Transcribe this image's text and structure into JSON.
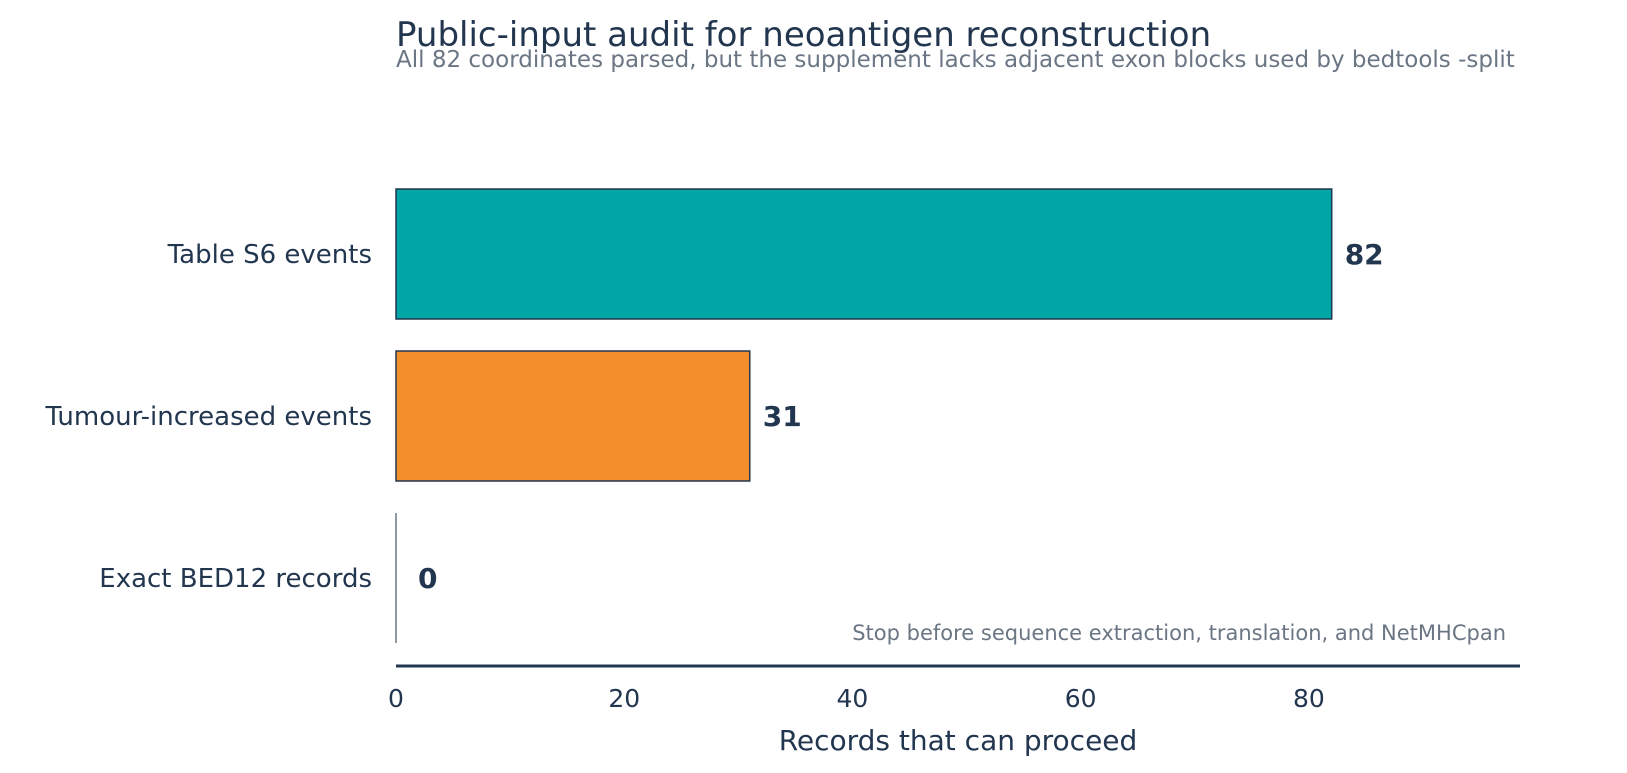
{
  "chart_data": {
    "type": "bar",
    "orientation": "horizontal",
    "title": "Public-input audit for neoantigen reconstruction",
    "subtitle": "All 82 coordinates parsed, but the supplement lacks adjacent exon blocks used by bedtools -split",
    "categories": [
      "Table S6 events",
      "Tumour-increased events",
      "Exact BED12 records"
    ],
    "values": [
      82,
      31,
      0
    ],
    "value_labels": [
      "82",
      "31",
      "0"
    ],
    "bar_colors": [
      "#00a6a6",
      "#f28e2b",
      "#22364f"
    ],
    "xlabel": "Records that can proceed",
    "ylabel": "",
    "xlim": [
      0,
      98.5
    ],
    "xticks": [
      0,
      20,
      40,
      60,
      80
    ],
    "xtick_labels": [
      "0",
      "20",
      "40",
      "60",
      "80"
    ],
    "annotation": "Stop before sequence extraction, translation, and NetMHCpan",
    "grid": false,
    "legend": "none"
  },
  "colors": {
    "text": "#22364f",
    "muted": "#6b7684",
    "edge": "#22364f"
  }
}
